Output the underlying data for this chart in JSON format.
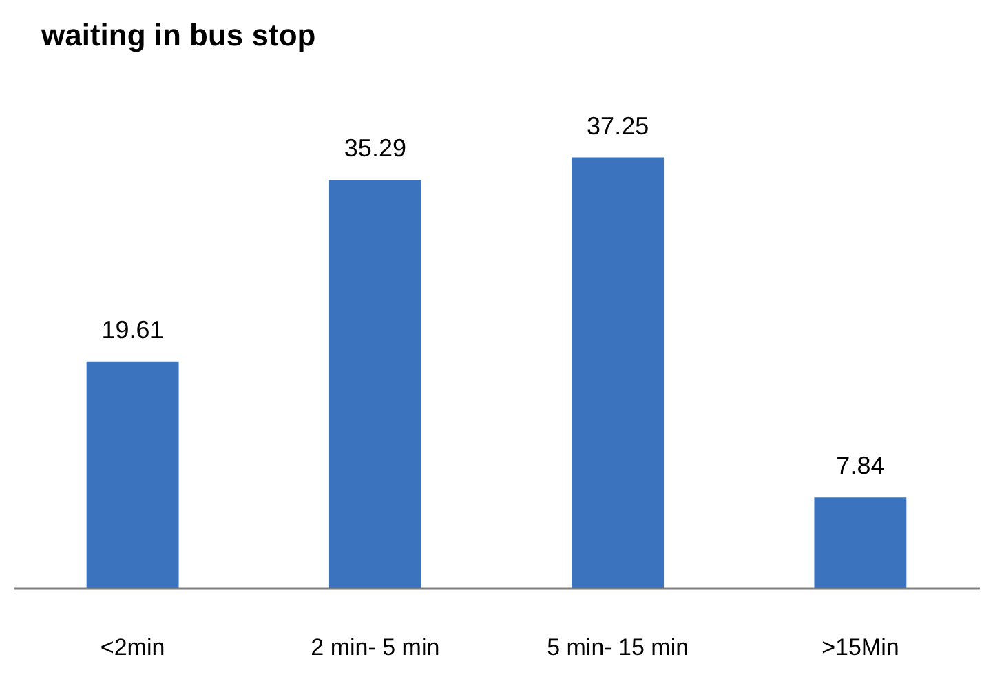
{
  "chart_data": {
    "type": "bar",
    "title": "waiting in bus stop",
    "categories": [
      "<2min",
      "2 min- 5 min",
      "5 min- 15 min",
      ">15Min"
    ],
    "values": [
      19.61,
      35.29,
      37.25,
      7.84
    ],
    "color": "#3b73bf",
    "data_labels": true
  }
}
